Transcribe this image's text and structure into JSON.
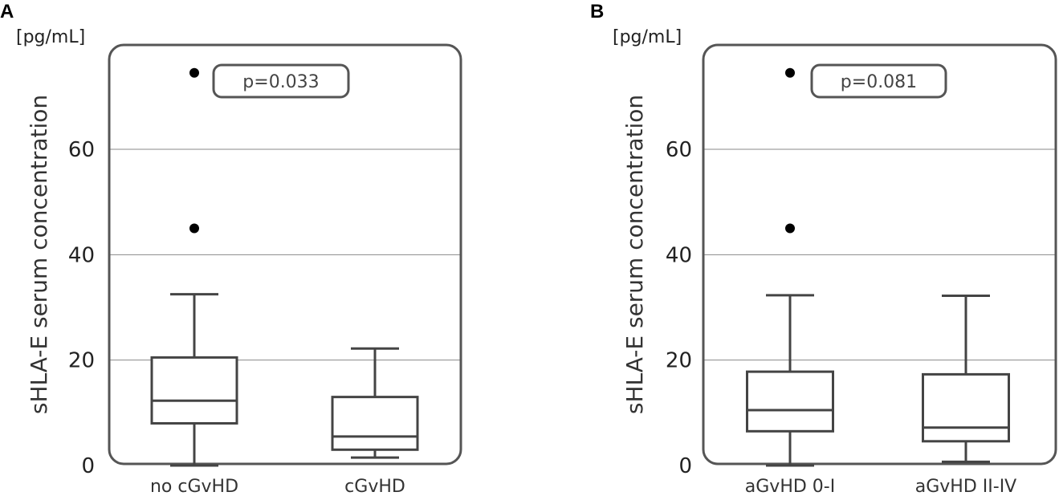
{
  "chart_data": [
    {
      "type": "box",
      "panel_label": "A",
      "unit_label": "[pg/mL]",
      "ylabel": "sHLA-E serum concentration",
      "ylim": [
        0,
        74
      ],
      "yticks": [
        0,
        20,
        40,
        60
      ],
      "grid": true,
      "p_value_label": "p=0.033",
      "categories": [
        "no cGvHD",
        "cGvHD"
      ],
      "boxes": [
        {
          "min": 0,
          "q1": 8,
          "median": 12.3,
          "q3": 20.5,
          "max": 32.5,
          "outliers": [
            45,
            74.5
          ]
        },
        {
          "min": 1.5,
          "q1": 3,
          "median": 5.5,
          "q3": 13,
          "max": 22.2,
          "outliers": []
        }
      ]
    },
    {
      "type": "box",
      "panel_label": "B",
      "unit_label": "[pg/mL]",
      "ylabel": "sHLA-E serum concentration",
      "ylim": [
        0,
        74
      ],
      "yticks": [
        0,
        20,
        40,
        60
      ],
      "grid": true,
      "p_value_label": "p=0.081",
      "categories": [
        "aGvHD 0-I",
        "aGvHD II-IV"
      ],
      "boxes": [
        {
          "min": 0,
          "q1": 6.5,
          "median": 10.5,
          "q3": 17.8,
          "max": 32.3,
          "outliers": [
            45,
            74.5
          ]
        },
        {
          "min": 0.7,
          "q1": 4.6,
          "median": 7.2,
          "q3": 17.3,
          "max": 32.2,
          "outliers": []
        }
      ]
    }
  ]
}
